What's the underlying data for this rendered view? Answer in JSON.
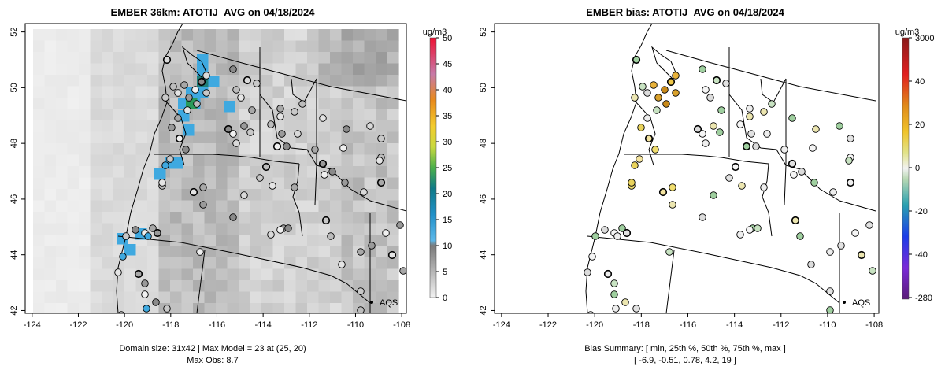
{
  "left": {
    "title": "EMBER 36km: ATOTIJ_AVG on 04/18/2024",
    "legend_unit": "ug/m3",
    "legend_ticks": [
      "0",
      "5",
      "10",
      "15",
      "20",
      "25",
      "30",
      "35",
      "40",
      "45",
      "50"
    ],
    "caption_line1": "Domain size: 31x42 | Max Model = 23 at (25, 20)",
    "caption_line2": "Max Obs: 8.7",
    "aqs_label": "AQS"
  },
  "right": {
    "title": "EMBER bias: ATOTIJ_AVG on 04/18/2024",
    "legend_unit": "ug/m3",
    "legend_ticks": [
      "-280",
      "-40",
      "-20",
      "0",
      "20",
      "40",
      "3000"
    ],
    "caption_line1": "Bias Summary: [ min, 25th %, 50th %, 75th %, max ]",
    "caption_line2": "[ -6.9,   -0.51,   0.78,   4.2,   19 ]",
    "aqs_label": "AQS"
  },
  "axes": {
    "x_ticks": [
      "-124",
      "-122",
      "-120",
      "-118",
      "-116",
      "-114",
      "-112",
      "-110",
      "-108"
    ],
    "y_ticks": [
      "42",
      "44",
      "46",
      "48",
      "50",
      "52"
    ],
    "x_range": [
      -124.3,
      -107.8
    ],
    "y_range": [
      41.9,
      52.3
    ]
  },
  "colors": {
    "plume_blue": "#3fa9e0",
    "bias_positive": "#e8c341",
    "bias_negative": "#8fc48f",
    "model_gray_low": "#e6e6e6",
    "model_gray_high": "#9a9a9a"
  }
}
